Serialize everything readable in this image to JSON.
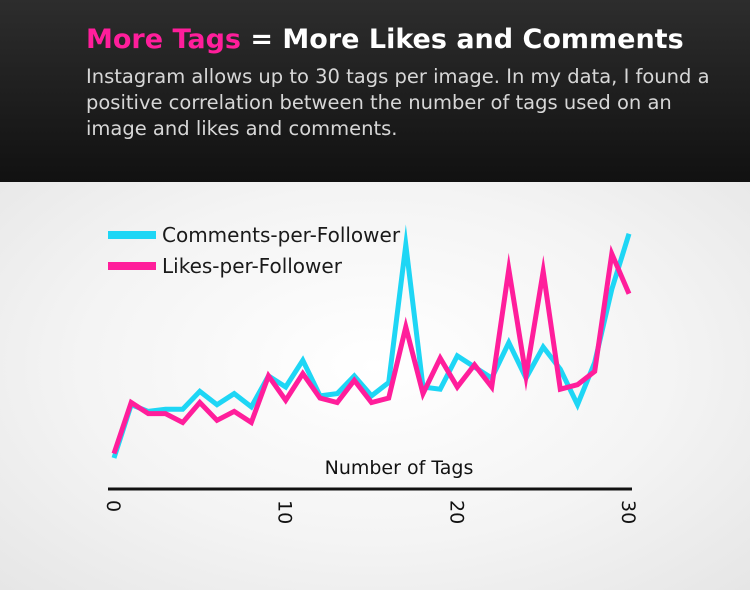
{
  "header": {
    "title_highlight": "More Tags",
    "title_rest": " = More Likes and Comments",
    "subtitle": "Instagram allows up to 30 tags per image. In my data, I found a positive correlation between the number of tags used on an image and likes and comments."
  },
  "colors": {
    "comments": "#1ed6f5",
    "likes": "#ff1e9b",
    "highlight": "#ff1e9b"
  },
  "chart_data": {
    "type": "line",
    "xlabel": "Number of Tags",
    "ylabel": "",
    "xlim": [
      0,
      30
    ],
    "ylim": [
      0,
      100
    ],
    "x_ticks": [
      0,
      10,
      20,
      30
    ],
    "grid": false,
    "legend": "top-left",
    "x": [
      0,
      1,
      2,
      3,
      4,
      5,
      6,
      7,
      8,
      9,
      10,
      11,
      12,
      13,
      14,
      15,
      16,
      17,
      18,
      19,
      20,
      21,
      22,
      23,
      24,
      25,
      26,
      27,
      28,
      29,
      30
    ],
    "series": [
      {
        "name": "Comments-per-Follower",
        "color_key": "comments",
        "values": [
          0,
          24,
          21,
          22,
          22,
          30,
          24,
          29,
          23,
          37,
          32,
          44,
          28,
          29,
          37,
          28,
          34,
          96,
          32,
          31,
          46,
          41,
          36,
          52,
          36,
          50,
          40,
          24,
          43,
          76,
          101
        ]
      },
      {
        "name": "Likes-per-Follower",
        "color_key": "likes",
        "values": [
          2,
          25,
          20,
          20,
          16,
          25,
          17,
          21,
          16,
          37,
          26,
          38,
          27,
          25,
          35,
          25,
          27,
          59,
          29,
          45,
          32,
          42,
          32,
          85,
          37,
          84,
          31,
          33,
          39,
          92,
          74
        ]
      }
    ]
  }
}
